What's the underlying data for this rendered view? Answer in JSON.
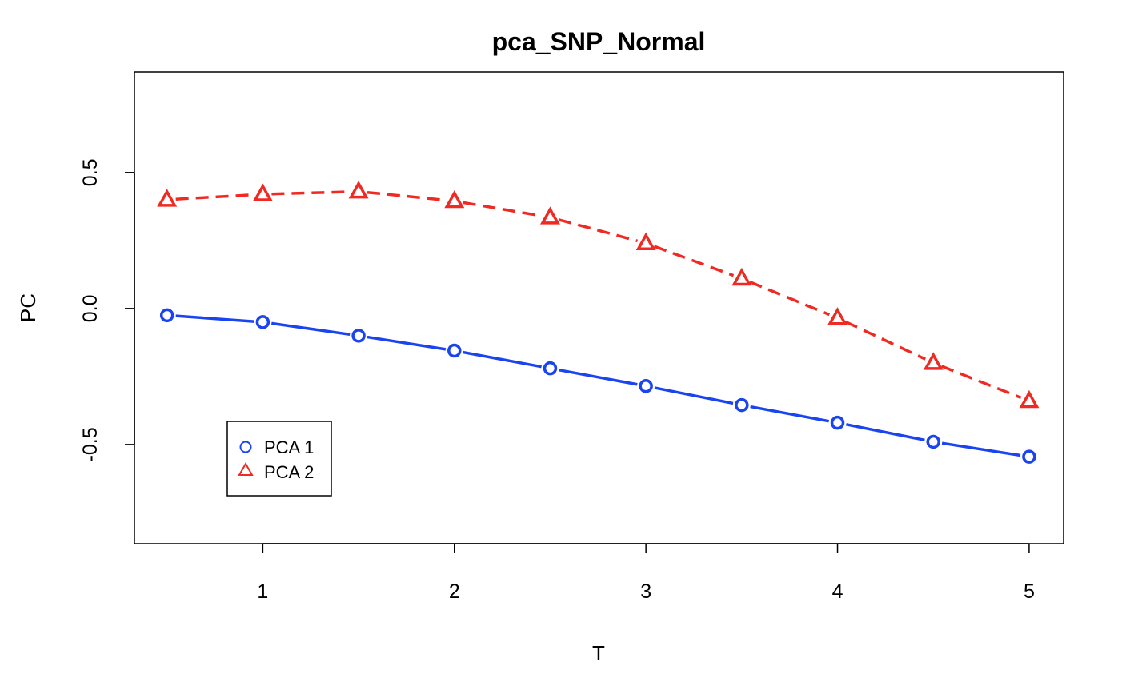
{
  "chart_data": {
    "type": "line",
    "title": "pca_SNP_Normal",
    "xlabel": "T",
    "ylabel": "PC",
    "x": [
      0.5,
      1,
      1.5,
      2,
      2.5,
      3,
      3.5,
      4,
      4.5,
      5
    ],
    "xlim": [
      0.33,
      5.18
    ],
    "ylim": [
      -0.865,
      0.87
    ],
    "xticks": [
      1,
      2,
      3,
      4,
      5
    ],
    "xtick_labels": [
      "1",
      "2",
      "3",
      "4",
      "5"
    ],
    "yticks": [
      -0.5,
      0.0,
      0.5
    ],
    "ytick_labels": [
      "-0.5",
      "0.0",
      "0.5"
    ],
    "grid": false,
    "legend_position": "bottom-left",
    "series": [
      {
        "name": "PCA 1",
        "color": "#1a44f0",
        "marker": "circle",
        "line_style": "solid",
        "values": [
          -0.025,
          -0.05,
          -0.1,
          -0.155,
          -0.22,
          -0.285,
          -0.355,
          -0.42,
          -0.49,
          -0.545
        ]
      },
      {
        "name": "PCA 2",
        "color": "#f02a22",
        "marker": "triangle",
        "line_style": "dashed",
        "values": [
          0.4,
          0.42,
          0.43,
          0.395,
          0.335,
          0.24,
          0.11,
          -0.035,
          -0.2,
          -0.34
        ]
      }
    ]
  }
}
